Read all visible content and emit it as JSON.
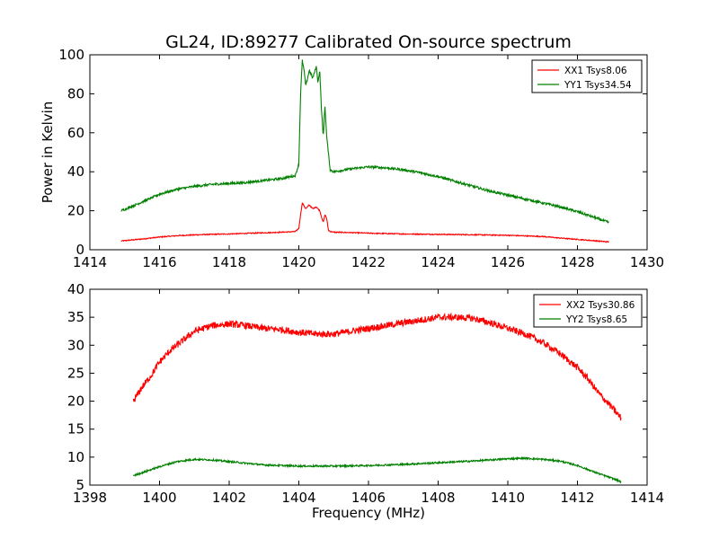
{
  "figure": {
    "title": "GL24, ID:89277 Calibrated On-source spectrum"
  },
  "chart_data": [
    {
      "type": "line",
      "title": "GL24, ID:89277 Calibrated On-source spectrum",
      "xlabel": "",
      "ylabel": "Power in Kelvin",
      "xlim": [
        1414,
        1430
      ],
      "ylim": [
        0,
        100
      ],
      "xticks": [
        1414,
        1416,
        1418,
        1420,
        1422,
        1424,
        1426,
        1428,
        1430
      ],
      "yticks": [
        0,
        20,
        40,
        60,
        80,
        100
      ],
      "grid": false,
      "legend_position": "top-right",
      "series": [
        {
          "name": "XX1 Tsys8.06",
          "color": "#ff0000",
          "x": [
            1414.9,
            1415.5,
            1416.0,
            1416.5,
            1417.0,
            1417.5,
            1418.0,
            1418.5,
            1419.0,
            1419.5,
            1419.9,
            1420.0,
            1420.05,
            1420.1,
            1420.2,
            1420.3,
            1420.4,
            1420.5,
            1420.6,
            1420.7,
            1420.75,
            1420.8,
            1420.85,
            1420.9,
            1421.0,
            1421.5,
            1422.0,
            1422.5,
            1423.0,
            1424.0,
            1425.0,
            1426.0,
            1426.5,
            1427.0,
            1427.5,
            1428.0,
            1428.5,
            1428.9
          ],
          "y": [
            4.5,
            5.5,
            6.5,
            7.2,
            7.6,
            7.9,
            8.1,
            8.4,
            8.7,
            9.0,
            9.3,
            11,
            18,
            24,
            21,
            23,
            21,
            22,
            20,
            14,
            18,
            16,
            10,
            9.4,
            9.0,
            8.8,
            8.5,
            8.3,
            8.1,
            7.9,
            7.7,
            7.4,
            7.1,
            6.8,
            6.0,
            5.3,
            4.6,
            4.0
          ]
        },
        {
          "name": "YY1 Tsys34.54",
          "color": "#008000",
          "x": [
            1414.9,
            1415.3,
            1415.7,
            1416.0,
            1416.5,
            1417.0,
            1417.5,
            1418.0,
            1418.5,
            1419.0,
            1419.5,
            1419.9,
            1420.0,
            1420.05,
            1420.1,
            1420.15,
            1420.2,
            1420.3,
            1420.4,
            1420.5,
            1420.55,
            1420.6,
            1420.65,
            1420.7,
            1420.75,
            1420.8,
            1420.9,
            1421.0,
            1421.5,
            1422.0,
            1422.5,
            1423.0,
            1423.5,
            1424.0,
            1424.5,
            1425.0,
            1425.5,
            1426.0,
            1426.5,
            1427.0,
            1427.5,
            1428.0,
            1428.5,
            1428.9
          ],
          "y": [
            20,
            23,
            26,
            28.5,
            31,
            32.5,
            33.5,
            34,
            34.5,
            35.5,
            36.5,
            38,
            44,
            80,
            97,
            92,
            84,
            92,
            88,
            94,
            86,
            92,
            72,
            58,
            74,
            58,
            41,
            40,
            41.5,
            42.5,
            42,
            41,
            39.5,
            37.5,
            35,
            32.5,
            30,
            28,
            26,
            24,
            22,
            19.5,
            16.5,
            14
          ]
        }
      ]
    },
    {
      "type": "line",
      "title": "",
      "xlabel": "Frequency (MHz)",
      "ylabel": "",
      "xlim": [
        1398,
        1414
      ],
      "ylim": [
        5,
        40
      ],
      "xticks": [
        1398,
        1400,
        1402,
        1404,
        1406,
        1408,
        1410,
        1412,
        1414
      ],
      "yticks": [
        5,
        10,
        15,
        20,
        25,
        30,
        35,
        40
      ],
      "grid": false,
      "legend_position": "top-right",
      "series": [
        {
          "name": "XX2 Tsys30.86",
          "color": "#ff0000",
          "x": [
            1399.25,
            1399.5,
            1399.75,
            1400.0,
            1400.3,
            1400.6,
            1401.0,
            1401.5,
            1402.0,
            1402.5,
            1403.0,
            1403.5,
            1404.0,
            1404.5,
            1405.0,
            1405.5,
            1406.0,
            1406.5,
            1407.0,
            1407.5,
            1408.0,
            1408.5,
            1409.0,
            1409.5,
            1410.0,
            1410.5,
            1411.0,
            1411.5,
            1412.0,
            1412.3,
            1412.6,
            1412.9,
            1413.25
          ],
          "y": [
            20,
            22.5,
            24.5,
            27,
            29,
            30.5,
            32.5,
            33.5,
            33.8,
            33.5,
            33,
            32.8,
            32.3,
            32,
            32,
            32.5,
            33,
            33.5,
            34,
            34.5,
            35,
            35,
            34.8,
            34,
            33,
            32,
            30.5,
            28.5,
            26,
            24,
            21.5,
            19.5,
            17
          ]
        },
        {
          "name": "YY2 Tsys8.65",
          "color": "#008000",
          "x": [
            1399.25,
            1399.5,
            1400.0,
            1400.5,
            1401.0,
            1401.5,
            1402.0,
            1402.5,
            1403.0,
            1403.5,
            1404.0,
            1405.0,
            1406.0,
            1407.0,
            1408.0,
            1409.0,
            1410.0,
            1410.5,
            1411.0,
            1411.5,
            1412.0,
            1412.5,
            1413.0,
            1413.25
          ],
          "y": [
            6.7,
            7.2,
            8.3,
            9.2,
            9.6,
            9.5,
            9.2,
            8.9,
            8.6,
            8.5,
            8.4,
            8.4,
            8.5,
            8.7,
            9.0,
            9.3,
            9.7,
            9.8,
            9.6,
            9.3,
            8.5,
            7.3,
            6.2,
            5.6
          ]
        }
      ]
    }
  ]
}
